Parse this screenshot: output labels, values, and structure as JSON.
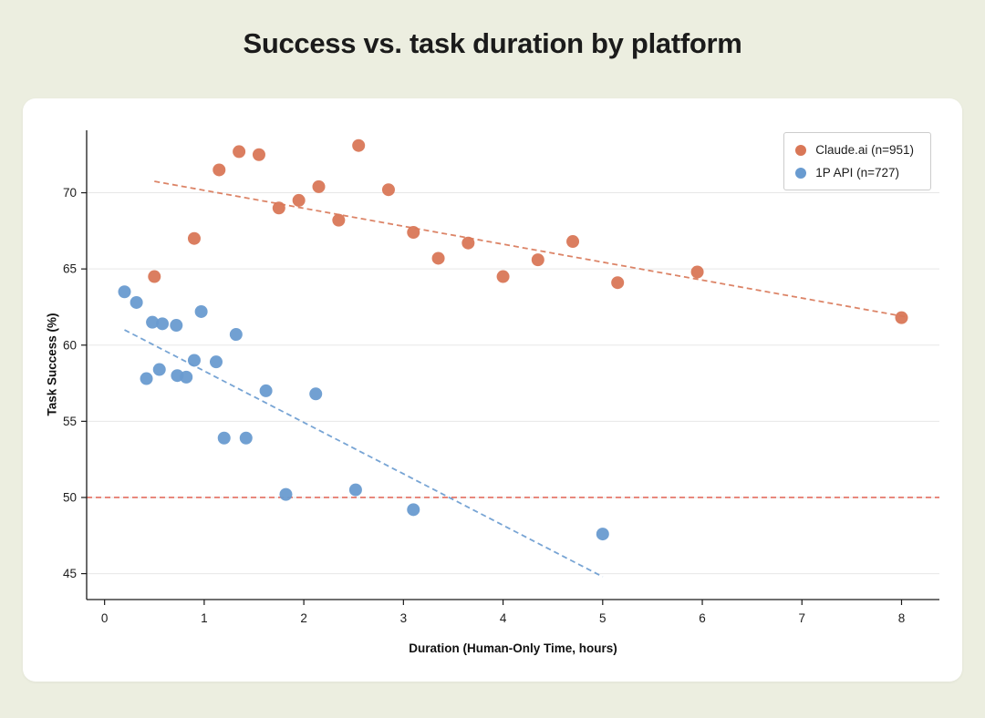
{
  "page": {
    "title": "Success vs. task duration by platform",
    "background_color": "#eceee0",
    "card_color": "#ffffff"
  },
  "chart_data": {
    "type": "scatter",
    "title": "Success vs. task duration by platform",
    "xlabel": "Duration (Human-Only Time, hours)",
    "ylabel": "Task Success (%)",
    "xlim": [
      -0.18,
      8.38
    ],
    "ylim": [
      43.3,
      74.1
    ],
    "xticks": [
      0,
      1,
      2,
      3,
      4,
      5,
      6,
      7,
      8
    ],
    "yticks": [
      45,
      50,
      55,
      60,
      65,
      70
    ],
    "grid": "horizontal",
    "gridline_color": "#e7e7e7",
    "axis_color": "#1a1a1a",
    "legend_position": "top-right",
    "reference_line": {
      "y": 50,
      "color": "#de5240",
      "style": "dashed"
    },
    "series": [
      {
        "name": "Claude.ai (n=951)",
        "color": "#d97757",
        "marker_size": 7,
        "points": [
          [
            0.5,
            64.5
          ],
          [
            0.9,
            67.0
          ],
          [
            1.15,
            71.5
          ],
          [
            1.35,
            72.7
          ],
          [
            1.55,
            72.5
          ],
          [
            1.75,
            69.0
          ],
          [
            1.95,
            69.5
          ],
          [
            2.15,
            70.4
          ],
          [
            2.35,
            68.2
          ],
          [
            2.55,
            73.1
          ],
          [
            2.85,
            70.2
          ],
          [
            3.1,
            67.4
          ],
          [
            3.35,
            65.7
          ],
          [
            3.65,
            66.7
          ],
          [
            4.0,
            64.5
          ],
          [
            4.35,
            65.6
          ],
          [
            4.7,
            66.8
          ],
          [
            5.15,
            64.1
          ],
          [
            5.95,
            64.8
          ],
          [
            8.0,
            61.8
          ]
        ],
        "trendline": {
          "style": "dashed",
          "start": [
            0.5,
            70.75
          ],
          "end": [
            8.05,
            61.85
          ]
        }
      },
      {
        "name": "1P API (n=727)",
        "color": "#699bd0",
        "marker_size": 7,
        "points": [
          [
            0.2,
            63.5
          ],
          [
            0.32,
            62.8
          ],
          [
            0.42,
            57.8
          ],
          [
            0.48,
            61.5
          ],
          [
            0.58,
            61.4
          ],
          [
            0.55,
            58.4
          ],
          [
            0.72,
            61.3
          ],
          [
            0.73,
            58.0
          ],
          [
            0.82,
            57.9
          ],
          [
            0.9,
            59.0
          ],
          [
            0.97,
            62.2
          ],
          [
            1.12,
            58.9
          ],
          [
            1.2,
            53.9
          ],
          [
            1.32,
            60.7
          ],
          [
            1.42,
            53.9
          ],
          [
            1.62,
            57.0
          ],
          [
            1.82,
            50.2
          ],
          [
            2.12,
            56.8
          ],
          [
            2.52,
            50.5
          ],
          [
            3.1,
            49.2
          ],
          [
            5.0,
            47.6
          ]
        ],
        "trendline": {
          "style": "dashed",
          "start": [
            0.2,
            61.0
          ],
          "end": [
            5.0,
            44.8
          ]
        }
      }
    ]
  }
}
